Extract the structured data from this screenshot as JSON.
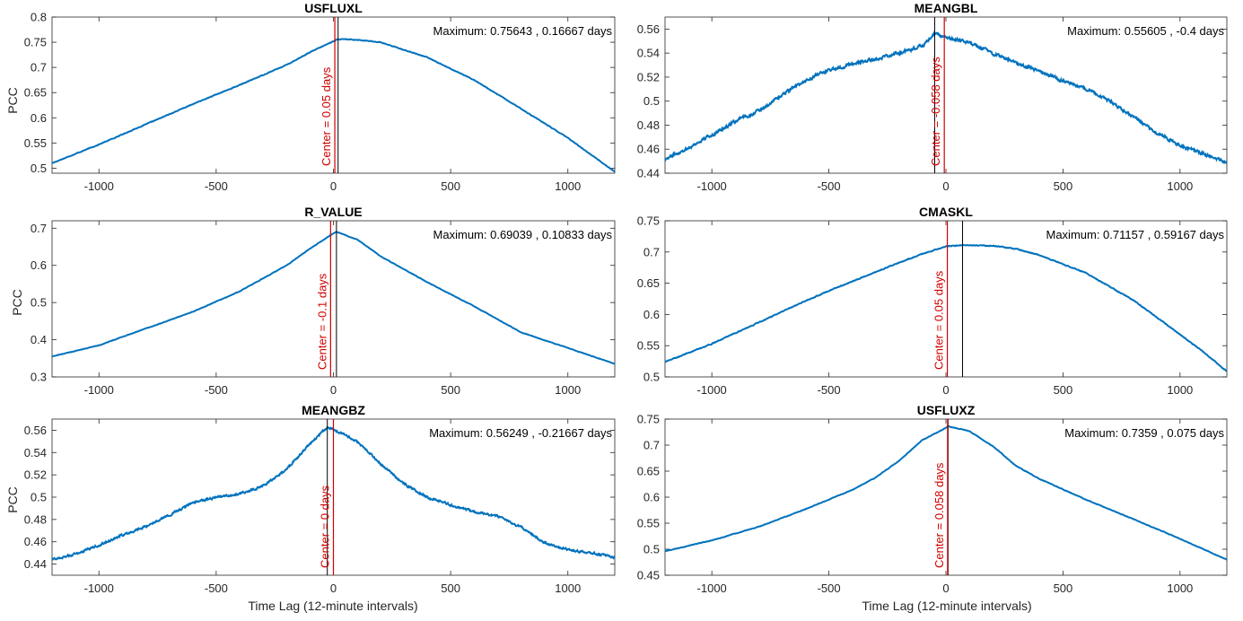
{
  "figure": {
    "xlabel": "Time Lag (12-minute intervals)",
    "ylabel": "PCC",
    "max_prefix": "Maximum:",
    "days_suffix": "days",
    "center_prefix": "Center =",
    "colors": {
      "curve": "#0072BD",
      "center": "#D00000",
      "max_line": "#000000",
      "axes": "#262626"
    }
  },
  "chart_data": [
    {
      "type": "line",
      "title": "USFLUXL",
      "xlim": [
        -1200,
        1200
      ],
      "ylim": [
        0.49,
        0.8
      ],
      "xticks": [
        -1000,
        -500,
        0,
        500,
        1000
      ],
      "yticks": [
        0.5,
        0.55,
        0.6,
        0.65,
        0.7,
        0.75,
        0.8
      ],
      "ytick_labels": [
        "0.5",
        "0.55",
        "0.6",
        "0.65",
        "0.7",
        "0.75",
        "0.8"
      ],
      "max_value": "0.75643",
      "max_lag_days": "0.16667",
      "max_lag": 20,
      "center_label": "0.05 days",
      "center_lag": 6,
      "noise": 0.001,
      "x": [
        -1200,
        -1000,
        -800,
        -600,
        -400,
        -200,
        -100,
        0,
        20,
        100,
        200,
        400,
        600,
        800,
        1000,
        1200
      ],
      "y": [
        0.51,
        0.547,
        0.587,
        0.627,
        0.665,
        0.705,
        0.73,
        0.752,
        0.756,
        0.755,
        0.75,
        0.72,
        0.675,
        0.618,
        0.56,
        0.493
      ]
    },
    {
      "type": "line",
      "title": "MEANGBL",
      "xlim": [
        -1200,
        1200
      ],
      "ylim": [
        0.44,
        0.57
      ],
      "xticks": [
        -1000,
        -500,
        0,
        500,
        1000
      ],
      "yticks": [
        0.44,
        0.46,
        0.48,
        0.5,
        0.52,
        0.54,
        0.56
      ],
      "ytick_labels": [
        "0.44",
        "0.46",
        "0.48",
        "0.5",
        "0.52",
        "0.54",
        "0.56"
      ],
      "max_value": "0.55605",
      "max_lag_days": "-0.4",
      "max_lag": -48,
      "center_label": "-0.058 days",
      "center_lag": -7,
      "noise": 0.002,
      "x": [
        -1200,
        -1100,
        -1000,
        -900,
        -800,
        -700,
        -600,
        -500,
        -400,
        -300,
        -200,
        -100,
        -48,
        0,
        100,
        200,
        300,
        400,
        500,
        600,
        700,
        800,
        900,
        1000,
        1100,
        1200
      ],
      "y": [
        0.452,
        0.461,
        0.472,
        0.483,
        0.492,
        0.505,
        0.517,
        0.526,
        0.531,
        0.535,
        0.54,
        0.546,
        0.556,
        0.553,
        0.549,
        0.54,
        0.532,
        0.525,
        0.517,
        0.51,
        0.5,
        0.487,
        0.474,
        0.463,
        0.456,
        0.449
      ]
    },
    {
      "type": "line",
      "title": "R_VALUE",
      "xlim": [
        -1200,
        1200
      ],
      "ylim": [
        0.3,
        0.72
      ],
      "xticks": [
        -1000,
        -500,
        0,
        500,
        1000
      ],
      "yticks": [
        0.3,
        0.4,
        0.5,
        0.6,
        0.7
      ],
      "ytick_labels": [
        "0.3",
        "0.4",
        "0.5",
        "0.6",
        "0.7"
      ],
      "max_value": "0.69039",
      "max_lag_days": "0.10833",
      "max_lag": 13,
      "center_label": "-0.1 days",
      "center_lag": -12,
      "noise": 0.001,
      "x": [
        -1200,
        -1000,
        -800,
        -600,
        -400,
        -200,
        -100,
        0,
        13,
        100,
        200,
        400,
        600,
        800,
        1000,
        1200
      ],
      "y": [
        0.355,
        0.385,
        0.43,
        0.475,
        0.53,
        0.6,
        0.645,
        0.686,
        0.69,
        0.67,
        0.625,
        0.555,
        0.49,
        0.42,
        0.378,
        0.335
      ]
    },
    {
      "type": "line",
      "title": "CMASKL",
      "xlim": [
        -1200,
        1200
      ],
      "ylim": [
        0.5,
        0.75
      ],
      "xticks": [
        -1000,
        -500,
        0,
        500,
        1000
      ],
      "yticks": [
        0.5,
        0.55,
        0.6,
        0.65,
        0.7,
        0.75
      ],
      "ytick_labels": [
        "0.5",
        "0.55",
        "0.6",
        "0.65",
        "0.7",
        "0.75"
      ],
      "max_value": "0.71157",
      "max_lag_days": "0.59167",
      "max_lag": 71,
      "center_label": "0.05 days",
      "center_lag": 6,
      "noise": 0.001,
      "x": [
        -1200,
        -1000,
        -800,
        -600,
        -400,
        -200,
        -100,
        0,
        71,
        200,
        300,
        400,
        600,
        800,
        1000,
        1100,
        1200
      ],
      "y": [
        0.524,
        0.553,
        0.587,
        0.622,
        0.653,
        0.683,
        0.697,
        0.709,
        0.711,
        0.71,
        0.705,
        0.695,
        0.666,
        0.623,
        0.568,
        0.54,
        0.509
      ]
    },
    {
      "type": "line",
      "title": "MEANGBZ",
      "xlim": [
        -1200,
        1200
      ],
      "ylim": [
        0.43,
        0.57
      ],
      "xticks": [
        -1000,
        -500,
        0,
        500,
        1000
      ],
      "yticks": [
        0.44,
        0.46,
        0.48,
        0.5,
        0.52,
        0.54,
        0.56
      ],
      "ytick_labels": [
        "0.44",
        "0.46",
        "0.48",
        "0.5",
        "0.52",
        "0.54",
        "0.56"
      ],
      "max_value": "0.56249",
      "max_lag_days": "-0.21667",
      "max_lag": -26,
      "center_label": "0 days",
      "center_lag": 0,
      "noise": 0.0015,
      "x": [
        -1200,
        -1100,
        -1000,
        -900,
        -800,
        -700,
        -600,
        -500,
        -400,
        -300,
        -200,
        -100,
        -26,
        0,
        100,
        200,
        300,
        400,
        500,
        600,
        700,
        800,
        900,
        1000,
        1100,
        1200
      ],
      "y": [
        0.444,
        0.449,
        0.457,
        0.466,
        0.474,
        0.484,
        0.495,
        0.5,
        0.503,
        0.51,
        0.525,
        0.548,
        0.562,
        0.561,
        0.55,
        0.53,
        0.512,
        0.5,
        0.493,
        0.487,
        0.483,
        0.473,
        0.459,
        0.453,
        0.45,
        0.446
      ]
    },
    {
      "type": "line",
      "title": "USFLUXZ",
      "xlim": [
        -1200,
        1200
      ],
      "ylim": [
        0.45,
        0.75
      ],
      "xticks": [
        -1000,
        -500,
        0,
        500,
        1000
      ],
      "yticks": [
        0.45,
        0.5,
        0.55,
        0.6,
        0.65,
        0.7,
        0.75
      ],
      "ytick_labels": [
        "0.45",
        "0.5",
        "0.55",
        "0.6",
        "0.65",
        "0.7",
        "0.75"
      ],
      "max_value": "0.7359",
      "max_lag_days": "0.075",
      "max_lag": 9,
      "center_label": "0.058 days",
      "center_lag": 7,
      "noise": 0.0008,
      "x": [
        -1200,
        -1000,
        -800,
        -600,
        -400,
        -300,
        -200,
        -100,
        0,
        9,
        100,
        200,
        300,
        400,
        600,
        800,
        1000,
        1200
      ],
      "y": [
        0.496,
        0.517,
        0.543,
        0.577,
        0.614,
        0.638,
        0.67,
        0.71,
        0.733,
        0.736,
        0.727,
        0.698,
        0.66,
        0.635,
        0.595,
        0.558,
        0.52,
        0.48
      ]
    }
  ]
}
